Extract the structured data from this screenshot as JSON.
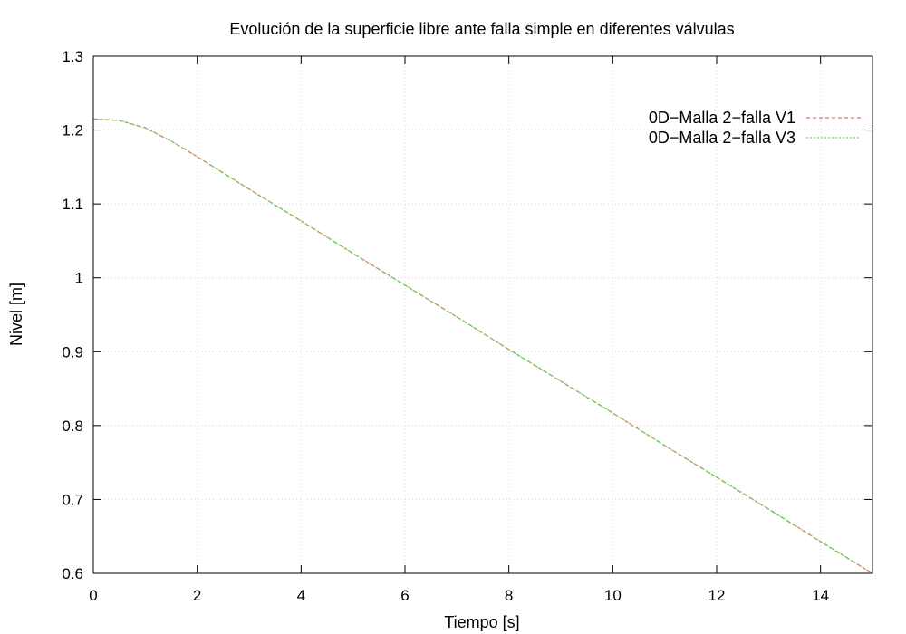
{
  "chart_data": {
    "type": "line",
    "title": "Evolución de la superficie libre ante falla simple en diferentes válvulas",
    "xlabel": "Tiempo [s]",
    "ylabel": "Nivel [m]",
    "xlim": [
      0,
      15
    ],
    "ylim": [
      0.6,
      1.3
    ],
    "x_ticks": [
      0,
      2,
      4,
      6,
      8,
      10,
      12,
      14
    ],
    "y_ticks": [
      0.6,
      0.7,
      0.8,
      0.9,
      1,
      1.1,
      1.2,
      1.3
    ],
    "x_tick_labels": [
      "0",
      "2",
      "4",
      "6",
      "8",
      "10",
      "12",
      "14"
    ],
    "y_tick_labels": [
      "0.6",
      "0.7",
      "0.8",
      "0.9",
      "1",
      "1.1",
      "1.2",
      "1.3"
    ],
    "grid": true,
    "legend_position": "top-right",
    "series": [
      {
        "name": "0D−Malla 2−falla V1",
        "color": "#e8706a",
        "dash": "dashed",
        "x": [
          0,
          0.5,
          1,
          1.5,
          2,
          3,
          4,
          5,
          6,
          7,
          8,
          9,
          10,
          11,
          12,
          13,
          14,
          15
        ],
        "y": [
          1.215,
          1.213,
          1.203,
          1.185,
          1.164,
          1.12,
          1.077,
          1.033,
          0.99,
          0.947,
          0.903,
          0.86,
          0.817,
          0.773,
          0.73,
          0.687,
          0.643,
          0.6
        ]
      },
      {
        "name": "0D−Malla 2−falla V3",
        "color": "#5ddc5d",
        "dash": "dotted",
        "x": [
          0,
          0.5,
          1,
          1.5,
          2,
          3,
          4,
          5,
          6,
          7,
          8,
          9,
          10,
          11,
          12,
          13,
          14,
          15
        ],
        "y": [
          1.215,
          1.213,
          1.203,
          1.185,
          1.164,
          1.12,
          1.077,
          1.033,
          0.99,
          0.947,
          0.903,
          0.86,
          0.817,
          0.773,
          0.73,
          0.687,
          0.643,
          0.6
        ]
      }
    ]
  }
}
